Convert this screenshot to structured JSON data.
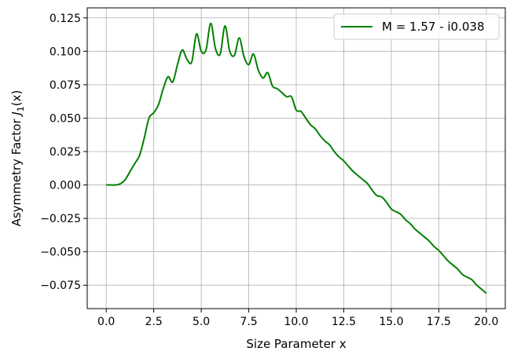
{
  "chart_data": {
    "type": "line",
    "title": "",
    "xlabel": "Size Parameter x",
    "ylabel_prefix": "Asymmetry Factor ",
    "ylabel_math_main": "J",
    "ylabel_math_sub": "1",
    "ylabel_math_arg": "(x)",
    "xlim": [
      -1.0,
      21.0
    ],
    "ylim": [
      -0.0925,
      0.1325
    ],
    "xticks": [
      0.0,
      2.5,
      5.0,
      7.5,
      10.0,
      12.5,
      15.0,
      17.5,
      20.0
    ],
    "xtick_labels": [
      "0.0",
      "2.5",
      "5.0",
      "7.5",
      "10.0",
      "12.5",
      "15.0",
      "17.5",
      "20.0"
    ],
    "yticks": [
      -0.075,
      -0.05,
      -0.025,
      0.0,
      0.025,
      0.05,
      0.075,
      0.1,
      0.125
    ],
    "ytick_labels": [
      "−0.075",
      "−0.050",
      "−0.025",
      "0.000",
      "0.025",
      "0.050",
      "0.075",
      "0.100",
      "0.125"
    ],
    "grid": true,
    "legend_position": "top-right",
    "series": [
      {
        "name": "M = 1.57 - i0.038",
        "color": "#008000",
        "x": [
          0.0,
          0.25,
          0.5,
          0.75,
          1.0,
          1.25,
          1.5,
          1.75,
          2.0,
          2.25,
          2.5,
          2.75,
          3.0,
          3.25,
          3.5,
          3.75,
          4.0,
          4.25,
          4.5,
          4.75,
          5.0,
          5.25,
          5.5,
          5.75,
          6.0,
          6.25,
          6.5,
          6.75,
          7.0,
          7.25,
          7.5,
          7.75,
          8.0,
          8.25,
          8.5,
          8.75,
          9.0,
          9.25,
          9.5,
          9.75,
          10.0,
          10.25,
          10.5,
          10.75,
          11.0,
          11.25,
          11.5,
          11.75,
          12.0,
          12.25,
          12.5,
          12.75,
          13.0,
          13.25,
          13.5,
          13.75,
          14.0,
          14.25,
          14.5,
          14.75,
          15.0,
          15.25,
          15.5,
          15.75,
          16.0,
          16.25,
          16.5,
          16.75,
          17.0,
          17.25,
          17.5,
          17.75,
          18.0,
          18.25,
          18.5,
          18.75,
          19.0,
          19.25,
          19.5,
          19.75,
          20.0
        ],
        "y": [
          0.0,
          0.0,
          0.0,
          0.001,
          0.004,
          0.01,
          0.016,
          0.022,
          0.035,
          0.05,
          0.054,
          0.06,
          0.072,
          0.081,
          0.077,
          0.09,
          0.101,
          0.094,
          0.092,
          0.113,
          0.1,
          0.101,
          0.121,
          0.102,
          0.098,
          0.119,
          0.1,
          0.097,
          0.11,
          0.096,
          0.09,
          0.098,
          0.086,
          0.08,
          0.084,
          0.074,
          0.072,
          0.069,
          0.066,
          0.066,
          0.056,
          0.055,
          0.05,
          0.045,
          0.042,
          0.037,
          0.033,
          0.03,
          0.025,
          0.021,
          0.018,
          0.014,
          0.01,
          0.007,
          0.004,
          0.001,
          -0.004,
          -0.008,
          -0.009,
          -0.013,
          -0.018,
          -0.02,
          -0.022,
          -0.026,
          -0.029,
          -0.033,
          -0.036,
          -0.039,
          -0.042,
          -0.046,
          -0.049,
          -0.053,
          -0.057,
          -0.06,
          -0.063,
          -0.067,
          -0.069,
          -0.071,
          -0.075,
          -0.078,
          -0.081
        ]
      }
    ]
  }
}
